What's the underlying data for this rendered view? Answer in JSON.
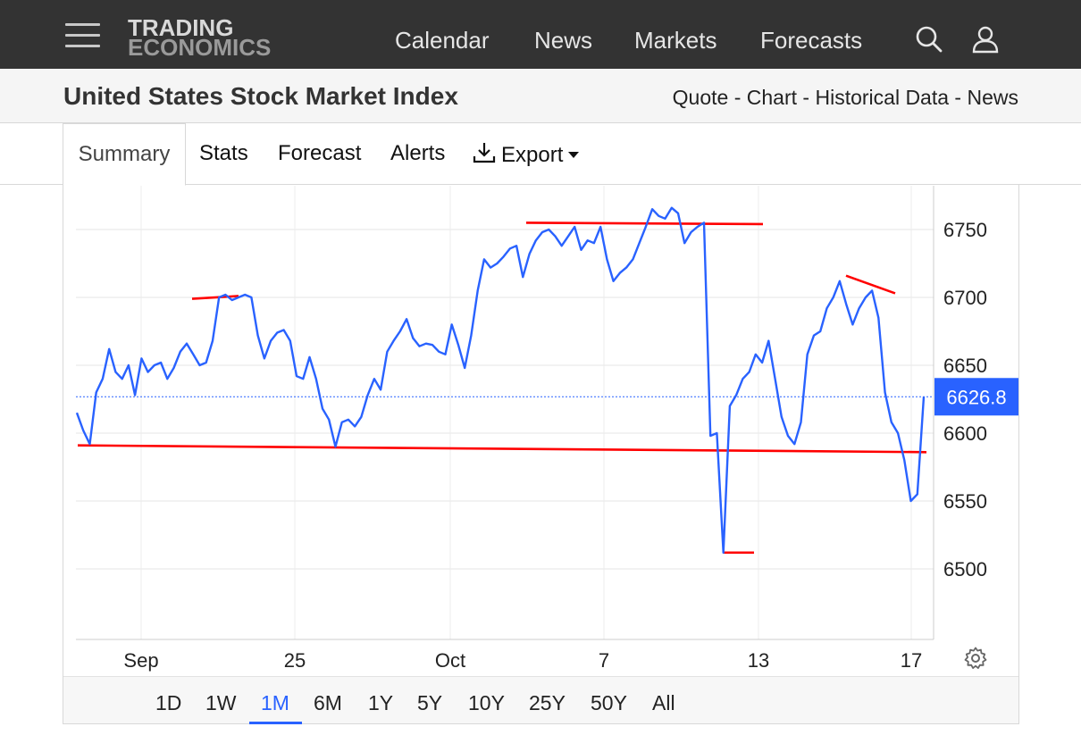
{
  "brand": {
    "line1": "TRADING",
    "line2": "ECONOMICS"
  },
  "nav": {
    "items": [
      "Calendar",
      "News",
      "Markets",
      "Forecasts"
    ]
  },
  "icons": {
    "menu": "hamburger-icon",
    "search": "search-icon",
    "user": "user-icon",
    "download": "download-icon",
    "caret": "caret-down-icon",
    "settings": "gear-icon"
  },
  "header": {
    "title": "United States Stock Market Index",
    "links": [
      "Quote",
      "Chart",
      "Historical Data",
      "News"
    ],
    "separator": " - "
  },
  "tabs": {
    "summary": "Summary",
    "stats": "Stats",
    "forecast": "Forecast",
    "alerts": "Alerts",
    "export": "Export"
  },
  "ranges": {
    "items": [
      "1D",
      "1W",
      "1M",
      "6M",
      "1Y",
      "5Y",
      "10Y",
      "25Y",
      "50Y",
      "All"
    ],
    "selected": "1M"
  },
  "colors": {
    "line": "#2962ff",
    "trendline": "#ff0000",
    "topbar": "#333333",
    "price_badge": "#2962ff"
  },
  "chart_data": {
    "type": "line",
    "title": "",
    "xlabel": "",
    "ylabel": "",
    "x_tick_labels": [
      "Sep",
      "25",
      "Oct",
      "7",
      "13",
      "17"
    ],
    "y_ticks": [
      6500,
      6550,
      6600,
      6650,
      6700,
      6750
    ],
    "ylim": [
      6450,
      6785
    ],
    "last_price": "6626.8",
    "last_value": 6626.8,
    "grid": true,
    "series": [
      {
        "values": [
          6615,
          6602,
          6592,
          6630,
          6640,
          6662,
          6645,
          6640,
          6650,
          6628,
          6655,
          6645,
          6650,
          6652,
          6640,
          6648,
          6660,
          6666,
          6658,
          6650,
          6652,
          6668,
          6700,
          6702,
          6698,
          6700,
          6702,
          6700,
          6672,
          6655,
          6668,
          6674,
          6676,
          6668,
          6642,
          6640,
          6656,
          6640,
          6618,
          6610,
          6590,
          6608,
          6610,
          6605,
          6612,
          6628,
          6640,
          6632,
          6660,
          6668,
          6675,
          6684,
          6670,
          6664,
          6666,
          6665,
          6660,
          6658,
          6680,
          6665,
          6648,
          6672,
          6705,
          6728,
          6722,
          6725,
          6730,
          6736,
          6738,
          6715,
          6732,
          6742,
          6748,
          6750,
          6745,
          6738,
          6745,
          6752,
          6735,
          6742,
          6740,
          6752,
          6728,
          6712,
          6718,
          6722,
          6728,
          6740,
          6752,
          6765,
          6760,
          6758,
          6766,
          6762,
          6740,
          6748,
          6752,
          6755,
          6598,
          6600,
          6512,
          6620,
          6628,
          6640,
          6645,
          6658,
          6652,
          6668,
          6640,
          6612,
          6598,
          6592,
          6608,
          6658,
          6672,
          6675,
          6692,
          6700,
          6712,
          6695,
          6680,
          6692,
          6700,
          6705,
          6685,
          6630,
          6608,
          6600,
          6580,
          6550,
          6555,
          6626.8
        ]
      }
    ],
    "annotations": "red horizontal trendlines drawn on chart"
  }
}
